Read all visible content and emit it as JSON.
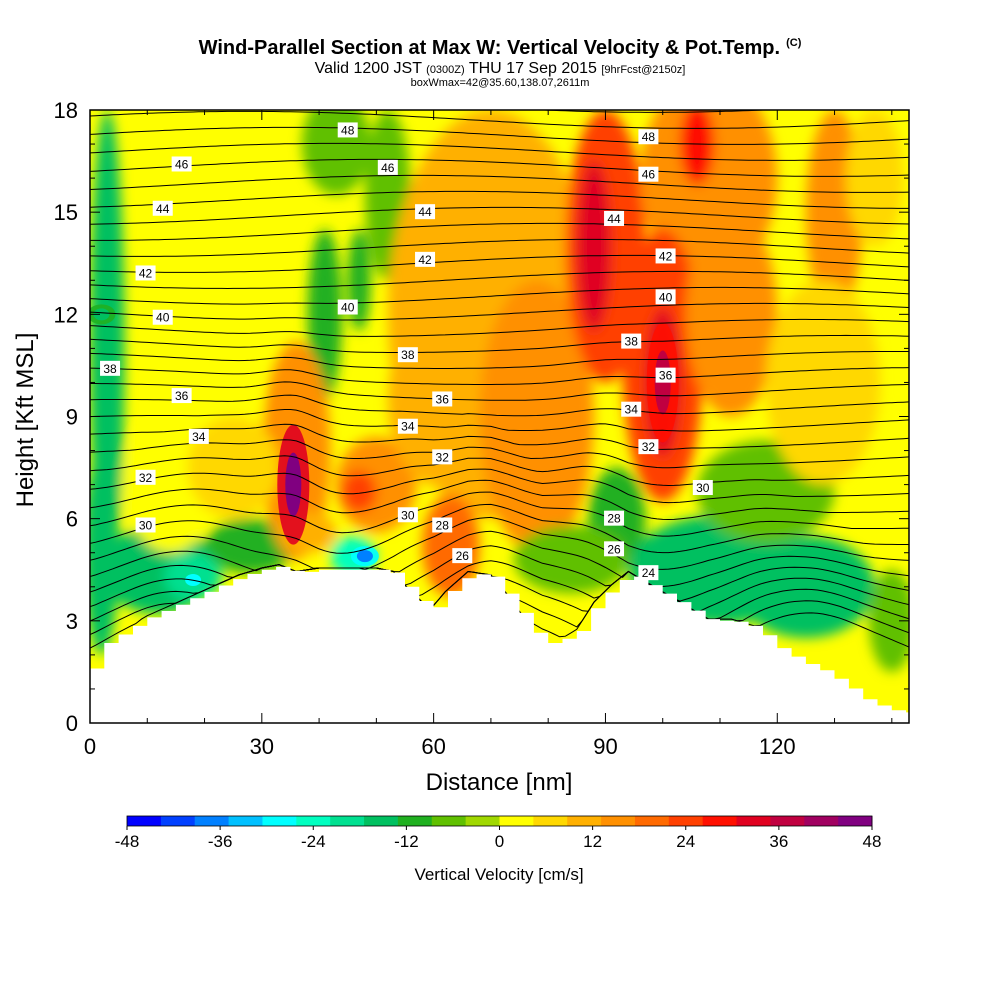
{
  "header": {
    "title": "Wind-Parallel Section at Max W: Vertical Velocity & Pot.Temp.",
    "title_mark": "(C)",
    "subtitle_pre": "Valid 1200 JST",
    "subtitle_zulu": "(0300Z)",
    "subtitle_date": "THU 17 Sep 2015",
    "subtitle_fcst": "[9hrFcst@2150z]",
    "detail": "boxWmax=42@35.60,138.07,2611m"
  },
  "chart_data": {
    "type": "heatmap",
    "xlabel": "Distance [nm]",
    "ylabel": "Height [Kft MSL]",
    "xlim": [
      0,
      143
    ],
    "ylim": [
      0,
      18
    ],
    "x_ticks": [
      "0",
      "30",
      "60",
      "90",
      "120"
    ],
    "y_ticks": [
      "0",
      "3",
      "6",
      "9",
      "12",
      "15",
      "18"
    ],
    "colorbar": {
      "label": "Vertical Velocity [cm/s]",
      "range": [
        -48,
        48
      ],
      "tick_labels": [
        "-48",
        "-36",
        "-24",
        "-12",
        "0",
        "12",
        "24",
        "36",
        "48"
      ],
      "colors": [
        "#0000ff",
        "#0040ff",
        "#0080ff",
        "#00c0ff",
        "#00ffff",
        "#00ffc0",
        "#00e090",
        "#00c060",
        "#20b020",
        "#60c000",
        "#a0d800",
        "#ffff00",
        "#ffd800",
        "#ffb000",
        "#ff9000",
        "#ff6a00",
        "#ff4000",
        "#ff1000",
        "#e00020",
        "#c00040",
        "#a00060",
        "#800080"
      ]
    },
    "terrain_heights_kft": [
      [
        0,
        1.6
      ],
      [
        2,
        2.3
      ],
      [
        5,
        2.6
      ],
      [
        8,
        2.9
      ],
      [
        10,
        3.1
      ],
      [
        14,
        3.4
      ],
      [
        18,
        3.7
      ],
      [
        22,
        4.0
      ],
      [
        26,
        4.3
      ],
      [
        30,
        4.5
      ],
      [
        33,
        4.6
      ],
      [
        36,
        4.4
      ],
      [
        40,
        4.5
      ],
      [
        45,
        4.5
      ],
      [
        50,
        4.5
      ],
      [
        53,
        4.4
      ],
      [
        55,
        4.0
      ],
      [
        58,
        3.5
      ],
      [
        60,
        3.4
      ],
      [
        62,
        3.8
      ],
      [
        66,
        4.4
      ],
      [
        70,
        4.3
      ],
      [
        73,
        3.7
      ],
      [
        76,
        3.0
      ],
      [
        79,
        2.3
      ],
      [
        83,
        2.5
      ],
      [
        85,
        2.7
      ],
      [
        88,
        3.5
      ],
      [
        91,
        4.0
      ],
      [
        94,
        4.4
      ],
      [
        97,
        4.1
      ],
      [
        100,
        3.8
      ],
      [
        104,
        3.4
      ],
      [
        108,
        3.0
      ],
      [
        112,
        3.0
      ],
      [
        116,
        2.8
      ],
      [
        120,
        2.2
      ],
      [
        124,
        1.8
      ],
      [
        127,
        1.6
      ],
      [
        131,
        1.2
      ],
      [
        135,
        0.7
      ],
      [
        139,
        0.4
      ],
      [
        143,
        0.3
      ]
    ],
    "vertical_velocity_features": [
      {
        "x": 35.5,
        "y": 7.0,
        "w": 46,
        "note": "updraft core"
      },
      {
        "x": 100,
        "y": 10.0,
        "w": 40,
        "note": "updraft core"
      },
      {
        "x": 48,
        "y": 4.9,
        "w": -40,
        "note": "downdraft"
      },
      {
        "x": 18,
        "y": 4.2,
        "w": -30,
        "note": "downdraft"
      },
      {
        "x": 2,
        "y": 12,
        "w": -15,
        "note": "downdraft column"
      }
    ],
    "potential_temperature_labels": [
      {
        "v": "48",
        "x": 45,
        "y": 17.4
      },
      {
        "v": "48",
        "x": 97.5,
        "y": 17.2
      },
      {
        "v": "46",
        "x": 16,
        "y": 16.4
      },
      {
        "v": "46",
        "x": 52,
        "y": 16.3
      },
      {
        "v": "46",
        "x": 97.5,
        "y": 16.1
      },
      {
        "v": "44",
        "x": 12.7,
        "y": 15.1
      },
      {
        "v": "44",
        "x": 58.5,
        "y": 15.0
      },
      {
        "v": "44",
        "x": 91.5,
        "y": 14.8
      },
      {
        "v": "42",
        "x": 9.7,
        "y": 13.2
      },
      {
        "v": "42",
        "x": 58.5,
        "y": 13.6
      },
      {
        "v": "42",
        "x": 100.5,
        "y": 13.7
      },
      {
        "v": "40",
        "x": 12.7,
        "y": 11.9
      },
      {
        "v": "40",
        "x": 45,
        "y": 12.2
      },
      {
        "v": "40",
        "x": 100.5,
        "y": 12.5
      },
      {
        "v": "38",
        "x": 3.5,
        "y": 10.4
      },
      {
        "v": "38",
        "x": 55.5,
        "y": 10.8
      },
      {
        "v": "38",
        "x": 94.5,
        "y": 11.2
      },
      {
        "v": "36",
        "x": 16,
        "y": 9.6
      },
      {
        "v": "36",
        "x": 61.5,
        "y": 9.5
      },
      {
        "v": "36",
        "x": 100.5,
        "y": 10.2
      },
      {
        "v": "34",
        "x": 19,
        "y": 8.4
      },
      {
        "v": "34",
        "x": 55.5,
        "y": 8.7
      },
      {
        "v": "34",
        "x": 94.5,
        "y": 9.2
      },
      {
        "v": "32",
        "x": 9.7,
        "y": 7.2
      },
      {
        "v": "32",
        "x": 61.5,
        "y": 7.8
      },
      {
        "v": "32",
        "x": 97.5,
        "y": 8.1
      },
      {
        "v": "30",
        "x": 9.7,
        "y": 5.8
      },
      {
        "v": "30",
        "x": 55.5,
        "y": 6.1
      },
      {
        "v": "30",
        "x": 107,
        "y": 6.9
      },
      {
        "v": "28",
        "x": 61.5,
        "y": 5.8
      },
      {
        "v": "28",
        "x": 91.5,
        "y": 6.0
      },
      {
        "v": "26",
        "x": 65,
        "y": 4.9
      },
      {
        "v": "26",
        "x": 91.5,
        "y": 5.1
      },
      {
        "v": "24",
        "x": 97.5,
        "y": 4.4
      }
    ]
  }
}
